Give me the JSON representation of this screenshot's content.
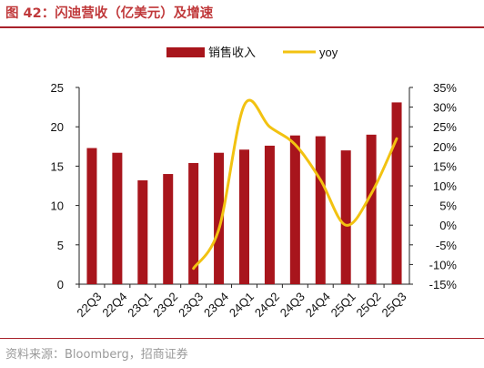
{
  "title": "图 42：闪迪营收（亿美元）及增速",
  "source": "资料来源：Bloomberg，招商证券",
  "colors": {
    "bar": "#a8151c",
    "line": "#f2c211",
    "title": "#c0393b",
    "rule": "#a8222b"
  },
  "chart_data": {
    "type": "bar",
    "categories": [
      "22Q3",
      "22Q4",
      "23Q1",
      "23Q2",
      "23Q3",
      "23Q4",
      "24Q1",
      "24Q2",
      "24Q3",
      "24Q4",
      "25Q1",
      "25Q2",
      "25Q3"
    ],
    "series": [
      {
        "name": "销售收入",
        "type": "bar",
        "axis": "left",
        "values": [
          17.3,
          16.7,
          13.2,
          14.0,
          15.4,
          16.7,
          17.1,
          17.6,
          18.9,
          18.8,
          17.0,
          19.0,
          23.1
        ]
      },
      {
        "name": "yoy",
        "type": "line",
        "axis": "right",
        "values": [
          null,
          null,
          null,
          null,
          -11.0,
          -1.0,
          30.5,
          25.0,
          20.5,
          11.5,
          0.0,
          8.0,
          22.0
        ]
      }
    ],
    "y_left": {
      "min": 0,
      "max": 25,
      "ticks": [
        "0",
        "5",
        "10",
        "15",
        "20",
        "25"
      ]
    },
    "y_right": {
      "min": -15,
      "max": 35,
      "ticks": [
        "-15%",
        "-10%",
        "-5%",
        "0%",
        "5%",
        "10%",
        "15%",
        "20%",
        "25%",
        "30%",
        "35%"
      ]
    },
    "legend": {
      "position": "top",
      "items": [
        "销售收入",
        "yoy"
      ]
    },
    "grid": false
  }
}
